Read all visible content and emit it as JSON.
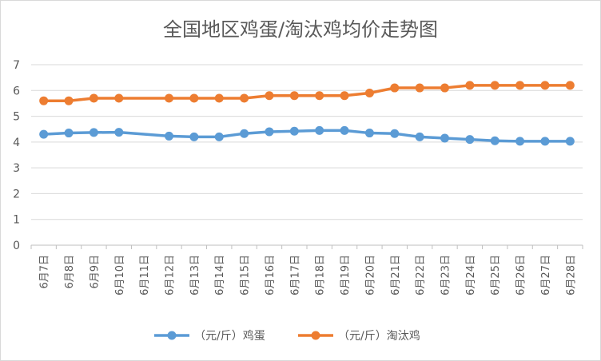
{
  "chart_data": {
    "type": "line",
    "title": "全国地区鸡蛋/淘汰鸡均价走势图",
    "categories": [
      "6月7日",
      "6月8日",
      "6月9日",
      "6月10日",
      "6月11日",
      "6月12日",
      "6月13日",
      "6月14日",
      "6月15日",
      "6月16日",
      "6月17日",
      "6月18日",
      "6月19日",
      "6月20日",
      "6月21日",
      "6月22日",
      "6月23日",
      "6月24日",
      "6月25日",
      "6月26日",
      "6月27日",
      "6月28日"
    ],
    "series": [
      {
        "name": "（元/斤）鸡蛋",
        "color": "#5B9BD5",
        "values": [
          4.3,
          4.35,
          4.37,
          4.38,
          null,
          4.23,
          4.2,
          4.2,
          4.33,
          4.4,
          4.42,
          4.45,
          4.45,
          4.35,
          4.33,
          4.2,
          4.15,
          4.1,
          4.05,
          4.03,
          4.03,
          4.03
        ]
      },
      {
        "name": "（元/斤）淘汰鸡",
        "color": "#ED7D31",
        "values": [
          5.6,
          5.6,
          5.7,
          5.7,
          null,
          5.7,
          5.7,
          5.7,
          5.7,
          5.8,
          5.8,
          5.8,
          5.8,
          5.9,
          6.1,
          6.1,
          6.1,
          6.2,
          6.2,
          6.2,
          6.2,
          6.2
        ]
      }
    ],
    "ylim": [
      0,
      7
    ],
    "yticks": [
      0,
      1,
      2,
      3,
      4,
      5,
      6,
      7
    ],
    "grid": true,
    "legend_position": "bottom"
  }
}
